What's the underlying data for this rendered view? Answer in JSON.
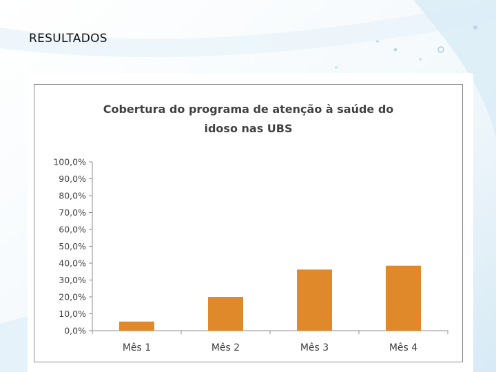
{
  "slide": {
    "title": "RESULTADOS"
  },
  "colors": {
    "bar": "#e0892a",
    "axis": "#8c8c8c"
  },
  "chart_data": {
    "type": "bar",
    "title_lines": [
      "Cobertura do programa de atenção à saúde do",
      "idoso nas UBS"
    ],
    "categories": [
      "Mês 1",
      "Mês 2",
      "Mês 3",
      "Mês 4"
    ],
    "values": [
      5.4,
      20.0,
      36.2,
      38.5
    ],
    "ylim": [
      0,
      100
    ],
    "ytick_step": 10,
    "ytick_labels": [
      "0,0%",
      "10,0%",
      "20,0%",
      "30,0%",
      "40,0%",
      "50,0%",
      "60,0%",
      "70,0%",
      "80,0%",
      "90,0%",
      "100,0%"
    ],
    "xlabel": "",
    "ylabel": "",
    "grid": false,
    "legend": "none"
  }
}
